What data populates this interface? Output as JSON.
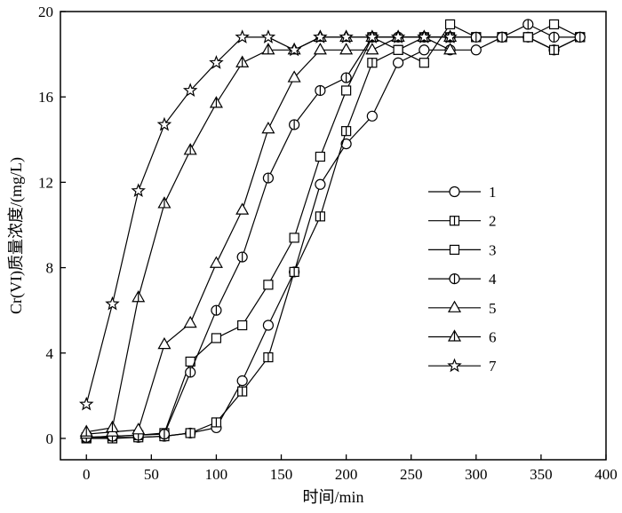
{
  "chart_data": {
    "type": "line",
    "xlabel": "时间/min",
    "ylabel": "Cr(VI)质量浓度/(mg/L)",
    "xlim": [
      -20,
      400
    ],
    "ylim": [
      -1,
      20
    ],
    "xticks": [
      0,
      50,
      100,
      150,
      200,
      250,
      300,
      350,
      400
    ],
    "yticks": [
      0,
      4,
      8,
      12,
      16,
      20
    ],
    "grid": false,
    "legend_position": "right-center",
    "series": [
      {
        "name": "1",
        "marker": "circle",
        "x": [
          0,
          20,
          40,
          60,
          80,
          100,
          120,
          140,
          160,
          180,
          200,
          220,
          240,
          260,
          280,
          300,
          320,
          340,
          360,
          380
        ],
        "y": [
          0.05,
          0.05,
          0.05,
          0.1,
          0.25,
          0.5,
          2.7,
          5.3,
          7.8,
          11.9,
          13.8,
          15.1,
          17.6,
          18.2,
          18.2,
          18.2,
          18.8,
          18.8,
          18.2,
          18.8
        ]
      },
      {
        "name": "2",
        "marker": "square-vline",
        "x": [
          0,
          20,
          40,
          60,
          80,
          100,
          120,
          140,
          160,
          180,
          200,
          220,
          240,
          260,
          280,
          300,
          320,
          340,
          360,
          380
        ],
        "y": [
          0.0,
          0.0,
          0.05,
          0.1,
          0.25,
          0.75,
          2.2,
          3.8,
          7.8,
          10.4,
          14.4,
          17.6,
          18.2,
          18.8,
          18.8,
          18.8,
          18.8,
          18.8,
          18.2,
          18.8
        ]
      },
      {
        "name": "3",
        "marker": "square",
        "x": [
          0,
          20,
          40,
          60,
          80,
          100,
          120,
          140,
          160,
          180,
          200,
          220,
          240,
          260,
          280,
          300,
          320,
          340,
          360,
          380
        ],
        "y": [
          0.05,
          0.1,
          0.15,
          0.25,
          3.6,
          4.7,
          5.3,
          7.2,
          9.4,
          13.2,
          16.3,
          18.8,
          18.2,
          17.6,
          19.4,
          18.8,
          18.8,
          18.8,
          19.4,
          18.8
        ]
      },
      {
        "name": "4",
        "marker": "circle-vline",
        "x": [
          0,
          20,
          40,
          60,
          80,
          100,
          120,
          140,
          160,
          180,
          200,
          220,
          240,
          260,
          280,
          300,
          320,
          340,
          360,
          380
        ],
        "y": [
          0.05,
          0.1,
          0.15,
          0.2,
          3.1,
          6.0,
          8.5,
          12.2,
          14.7,
          16.3,
          16.9,
          18.8,
          18.8,
          18.8,
          18.8,
          18.8,
          18.8,
          19.4,
          18.8,
          18.8
        ]
      },
      {
        "name": "5",
        "marker": "triangle",
        "x": [
          0,
          20,
          40,
          60,
          80,
          100,
          120,
          140,
          160,
          180,
          200,
          220,
          240,
          260,
          280
        ],
        "y": [
          0.2,
          0.3,
          0.4,
          4.4,
          5.4,
          8.2,
          10.7,
          14.5,
          16.9,
          18.2,
          18.2,
          18.2,
          18.8,
          18.8,
          18.2
        ]
      },
      {
        "name": "6",
        "marker": "triangle-vline",
        "x": [
          0,
          20,
          40,
          60,
          80,
          100,
          120,
          140,
          160,
          180,
          200,
          220,
          240,
          260,
          280
        ],
        "y": [
          0.3,
          0.5,
          6.6,
          11.0,
          13.5,
          15.7,
          17.6,
          18.2,
          18.2,
          18.8,
          18.8,
          18.8,
          18.8,
          18.8,
          18.8
        ]
      },
      {
        "name": "7",
        "marker": "star",
        "x": [
          0,
          20,
          40,
          60,
          80,
          100,
          120,
          140,
          160,
          180,
          200,
          220,
          240,
          260,
          280
        ],
        "y": [
          1.6,
          6.3,
          11.6,
          14.7,
          16.3,
          17.6,
          18.8,
          18.8,
          18.2,
          18.8,
          18.8,
          18.8,
          18.8,
          18.8,
          18.8
        ]
      }
    ]
  }
}
